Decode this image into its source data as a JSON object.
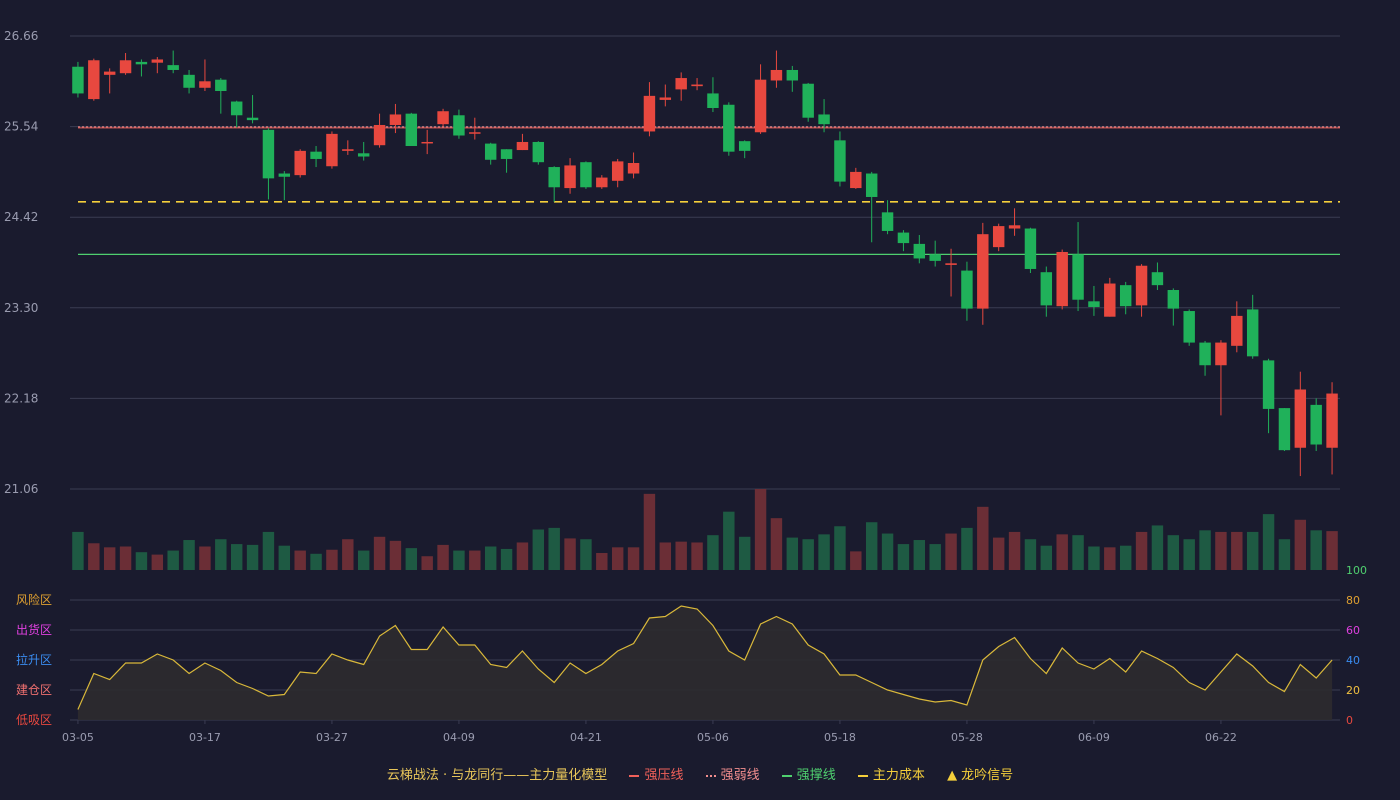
{
  "colors": {
    "background": "#1a1b2e",
    "grid": "#3a3c52",
    "axis_text": "#9a9cb0",
    "up": "#e8483f",
    "down": "#20b15a",
    "up_volume": "#6b2e36",
    "down_volume": "#1e5a43",
    "resist": "#f0605a",
    "weak": "#f28e8e",
    "support": "#4fd06f",
    "cost": "#f5cf3b",
    "indicator_line": "#d9b83a",
    "indicator_fill": "#2d2b2f"
  },
  "chart_data": {
    "type": "candlestick",
    "title": "",
    "price_axis": {
      "ticks": [
        "26.66",
        "25.54",
        "24.42",
        "23.30",
        "22.18",
        "21.06"
      ],
      "ylim": [
        21.06,
        26.66
      ]
    },
    "x_ticks": [
      "03-05",
      "03-17",
      "03-27",
      "04-09",
      "04-21",
      "05-06",
      "05-18",
      "05-28",
      "06-09",
      "06-22"
    ],
    "x_tick_positions": [
      0,
      8,
      16,
      24,
      32,
      40,
      48,
      56,
      64,
      72
    ],
    "reference_lines": {
      "resist_price": 25.53,
      "weak_price": 25.53,
      "support_price": 23.96,
      "cost_price": 24.61
    },
    "candles": [
      [
        26.28,
        25.95,
        26.34,
        25.9
      ],
      [
        25.88,
        26.36,
        26.38,
        25.86
      ],
      [
        26.18,
        26.22,
        26.26,
        25.95
      ],
      [
        26.2,
        26.36,
        26.45,
        26.18
      ],
      [
        26.34,
        26.31,
        26.37,
        26.16
      ],
      [
        26.33,
        26.37,
        26.4,
        26.2
      ],
      [
        26.3,
        26.24,
        26.48,
        26.2
      ],
      [
        26.18,
        26.02,
        26.24,
        25.95
      ],
      [
        26.02,
        26.1,
        26.37,
        25.98
      ],
      [
        26.12,
        25.98,
        26.14,
        25.7
      ],
      [
        25.85,
        25.68,
        25.86,
        25.53
      ],
      [
        25.65,
        25.62,
        25.93,
        25.58
      ],
      [
        25.5,
        24.9,
        25.52,
        24.64
      ],
      [
        24.96,
        24.92,
        24.99,
        24.63
      ],
      [
        24.94,
        25.24,
        25.26,
        24.91
      ],
      [
        25.23,
        25.14,
        25.3,
        25.04
      ],
      [
        25.05,
        25.45,
        25.48,
        25.02
      ],
      [
        25.24,
        25.26,
        25.37,
        25.19
      ],
      [
        25.21,
        25.17,
        25.35,
        25.12
      ],
      [
        25.31,
        25.56,
        25.7,
        25.28
      ],
      [
        25.56,
        25.69,
        25.82,
        25.46
      ],
      [
        25.7,
        25.3,
        25.71,
        25.3
      ],
      [
        25.35,
        25.35,
        25.5,
        25.2
      ],
      [
        25.57,
        25.73,
        25.76,
        25.54
      ],
      [
        25.68,
        25.43,
        25.75,
        25.39
      ],
      [
        25.46,
        25.47,
        25.65,
        25.38
      ],
      [
        25.33,
        25.13,
        25.34,
        25.07
      ],
      [
        25.26,
        25.14,
        25.26,
        24.97
      ],
      [
        25.25,
        25.35,
        25.45,
        25.25
      ],
      [
        25.35,
        25.1,
        25.36,
        25.07
      ],
      [
        25.04,
        24.79,
        25.05,
        24.61
      ],
      [
        24.78,
        25.06,
        25.15,
        24.71
      ],
      [
        25.1,
        24.79,
        25.11,
        24.77
      ],
      [
        24.79,
        24.91,
        24.94,
        24.77
      ],
      [
        24.87,
        25.11,
        25.14,
        24.79
      ],
      [
        24.96,
        25.09,
        25.22,
        24.9
      ],
      [
        25.48,
        25.92,
        26.09,
        25.42
      ],
      [
        25.87,
        25.9,
        26.06,
        25.79
      ],
      [
        26.0,
        26.14,
        26.21,
        25.86
      ],
      [
        26.04,
        26.06,
        26.14,
        25.99
      ],
      [
        25.95,
        25.77,
        26.15,
        25.72
      ],
      [
        25.81,
        25.23,
        25.84,
        25.18
      ],
      [
        25.36,
        25.24,
        25.37,
        25.15
      ],
      [
        25.47,
        26.12,
        26.31,
        25.45
      ],
      [
        26.11,
        26.24,
        26.48,
        26.02
      ],
      [
        26.24,
        26.11,
        26.29,
        25.97
      ],
      [
        26.07,
        25.65,
        26.08,
        25.6
      ],
      [
        25.69,
        25.57,
        25.88,
        25.47
      ],
      [
        25.37,
        24.86,
        25.48,
        24.8
      ],
      [
        24.78,
        24.98,
        25.03,
        24.77
      ],
      [
        24.96,
        24.67,
        24.98,
        24.11
      ],
      [
        24.48,
        24.25,
        24.63,
        24.21
      ],
      [
        24.23,
        24.1,
        24.26,
        24.0
      ],
      [
        24.09,
        23.91,
        24.2,
        23.85
      ],
      [
        23.96,
        23.88,
        24.13,
        23.81
      ],
      [
        23.83,
        23.85,
        24.03,
        23.44
      ],
      [
        23.76,
        23.29,
        23.87,
        23.14
      ],
      [
        23.29,
        24.21,
        24.35,
        23.09
      ],
      [
        24.05,
        24.31,
        24.34,
        24.0
      ],
      [
        24.28,
        24.32,
        24.53,
        24.19
      ],
      [
        24.28,
        23.78,
        24.29,
        23.73
      ],
      [
        23.74,
        23.33,
        23.81,
        23.19
      ],
      [
        23.32,
        23.99,
        24.02,
        23.28
      ],
      [
        23.96,
        23.4,
        24.36,
        23.26
      ],
      [
        23.38,
        23.31,
        23.57,
        23.2
      ],
      [
        23.19,
        23.6,
        23.67,
        23.19
      ],
      [
        23.58,
        23.32,
        23.62,
        23.22
      ],
      [
        23.33,
        23.82,
        23.84,
        23.19
      ],
      [
        23.74,
        23.58,
        23.86,
        23.52
      ],
      [
        23.52,
        23.29,
        23.54,
        23.08
      ],
      [
        23.26,
        22.87,
        23.28,
        22.83
      ],
      [
        22.87,
        22.59,
        22.89,
        22.46
      ],
      [
        22.59,
        22.87,
        22.9,
        21.97
      ],
      [
        22.83,
        23.2,
        23.38,
        22.75
      ],
      [
        23.28,
        22.7,
        23.46,
        22.67
      ],
      [
        22.65,
        22.05,
        22.67,
        21.75
      ],
      [
        22.06,
        21.54,
        22.06,
        21.53
      ],
      [
        21.57,
        22.29,
        22.51,
        21.22
      ],
      [
        22.1,
        21.61,
        22.18,
        21.53
      ],
      [
        21.57,
        22.24,
        22.38,
        21.24
      ]
    ],
    "volume": [
      47,
      33,
      28,
      29,
      22,
      19,
      24,
      37,
      29,
      38,
      32,
      31,
      47,
      30,
      24,
      20,
      25,
      38,
      24,
      41,
      36,
      27,
      17,
      31,
      24,
      24,
      29,
      26,
      34,
      50,
      52,
      39,
      38,
      21,
      28,
      28,
      94,
      34,
      35,
      34,
      43,
      72,
      41,
      100,
      64,
      40,
      38,
      44,
      54,
      23,
      59,
      45,
      32,
      37,
      32,
      45,
      52,
      78,
      40,
      47,
      38,
      30,
      44,
      43,
      29,
      28,
      30,
      47,
      55,
      43,
      38,
      49,
      47,
      47,
      47,
      69,
      38,
      62,
      49,
      48
    ],
    "indicator": {
      "axis_ticks": [
        "100",
        "80",
        "60",
        "40",
        "20",
        "0"
      ],
      "ylim": [
        0,
        100
      ],
      "zones": [
        "风险区",
        "出货区",
        "拉升区",
        "建仓区",
        "低吸区"
      ],
      "values": [
        7,
        31,
        27,
        38,
        38,
        44,
        40,
        31,
        38,
        33,
        25,
        21,
        16,
        17,
        32,
        31,
        44,
        40,
        37,
        56,
        63,
        47,
        47,
        62,
        50,
        50,
        37,
        35,
        46,
        34,
        25,
        38,
        31,
        37,
        46,
        51,
        68,
        69,
        76,
        74,
        63,
        46,
        40,
        64,
        69,
        64,
        50,
        44,
        30,
        30,
        25,
        20,
        17,
        14,
        12,
        13,
        10,
        40,
        49,
        55,
        41,
        31,
        48,
        38,
        34,
        41,
        32,
        46,
        41,
        35,
        25,
        20,
        32,
        44,
        36,
        25,
        19,
        37,
        28,
        40
      ]
    }
  },
  "legend": {
    "model_label": "云梯战法 · 与龙同行——主力量化模型",
    "resist_label": "强压线",
    "weak_label": "强弱线",
    "support_label": "强撑线",
    "cost_label": "主力成本",
    "signal_label": "龙吟信号"
  }
}
